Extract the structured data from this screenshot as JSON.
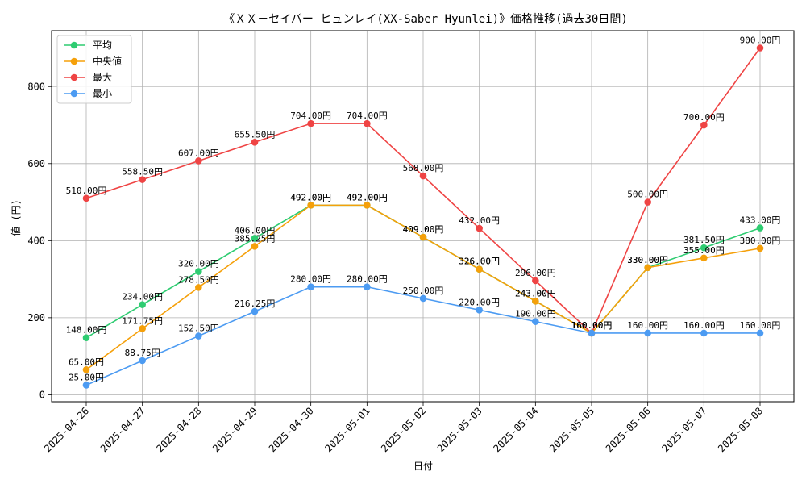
{
  "chart_data": {
    "type": "line",
    "title": "《ＸＸ－セイバー ヒュンレイ(XX-Saber Hyunlei)》価格推移(過去30日間)",
    "xlabel": "日付",
    "ylabel": "値 (円)",
    "categories": [
      "2025-04-26",
      "2025-04-27",
      "2025-04-28",
      "2025-04-29",
      "2025-04-30",
      "2025-05-01",
      "2025-05-02",
      "2025-05-03",
      "2025-05-04",
      "2025-05-05",
      "2025-05-06",
      "2025-05-07",
      "2025-05-08"
    ],
    "ylim": [
      -18,
      945
    ],
    "yticks": [
      0,
      200,
      400,
      600,
      800
    ],
    "grid": true,
    "legend_position": "top-left",
    "series": [
      {
        "name": "平均",
        "color": "#2ecc71",
        "values": [
          148,
          234,
          320,
          406,
          492,
          492,
          409,
          326,
          243,
          160,
          330,
          381.5,
          433
        ],
        "labels": [
          "148.00円",
          "234.00円",
          "320.00円",
          "406.00円",
          "492.00円",
          "492.00円",
          "409.00円",
          "326.00円",
          "243.00円",
          "160.00円",
          "330.00円",
          "381.50円",
          "433.00円"
        ]
      },
      {
        "name": "中央値",
        "color": "#f5a00a",
        "values": [
          65,
          171.75,
          278.5,
          385.25,
          492,
          492,
          409,
          326,
          243,
          160,
          330,
          355,
          380
        ],
        "labels": [
          "65.00円",
          "171.75円",
          "278.50円",
          "385.25円",
          "492.00円",
          "492.00円",
          "409.00円",
          "326.00円",
          "243.00円",
          "160.00円",
          "330.00円",
          "355.00円",
          "380.00円"
        ]
      },
      {
        "name": "最大",
        "color": "#ef4444",
        "values": [
          510,
          558.5,
          607,
          655.5,
          704,
          704,
          568,
          432,
          296,
          160,
          500,
          700,
          900
        ],
        "labels": [
          "510.00円",
          "558.50円",
          "607.00円",
          "655.50円",
          "704.00円",
          "704.00円",
          "568.00円",
          "432.00円",
          "296.00円",
          "160.00円",
          "500.00円",
          "700.00円",
          "900.00円"
        ]
      },
      {
        "name": "最小",
        "color": "#4c9bf2",
        "values": [
          25,
          88.75,
          152.5,
          216.25,
          280,
          280,
          250,
          220,
          190,
          160,
          160,
          160,
          160
        ],
        "labels": [
          "25.00円",
          "88.75円",
          "152.50円",
          "216.25円",
          "280.00円",
          "280.00円",
          "250.00円",
          "220.00円",
          "190.00円",
          "160.00円",
          "160.00円",
          "160.00円",
          "160.00円"
        ]
      }
    ]
  }
}
